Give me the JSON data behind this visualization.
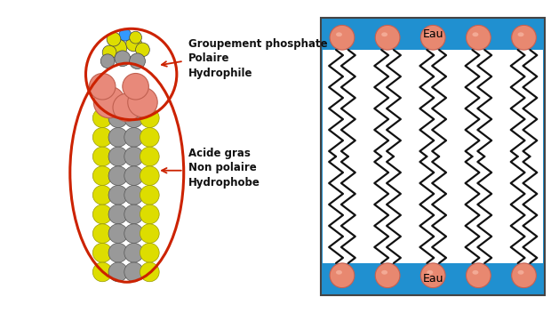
{
  "bg_color": "#ffffff",
  "blue_bg": "#2090d0",
  "head_color": "#e88870",
  "head_edge": "#c86050",
  "tail_color": "#111111",
  "ann_color": "#cc2200",
  "text_color": "#111111",
  "labels": {
    "phosphate": "Groupement phosphate",
    "polaire": "Polaire",
    "hydrophile": "Hydrophile",
    "acide": "Acide gras",
    "nonpolaire": "Non polaire",
    "hydrophobe": "Hydrophobe",
    "eau_top": "Eau",
    "eau_bot": "Eau"
  },
  "n_cols": 5,
  "n_zigzag": 10,
  "head_r": 0.055
}
